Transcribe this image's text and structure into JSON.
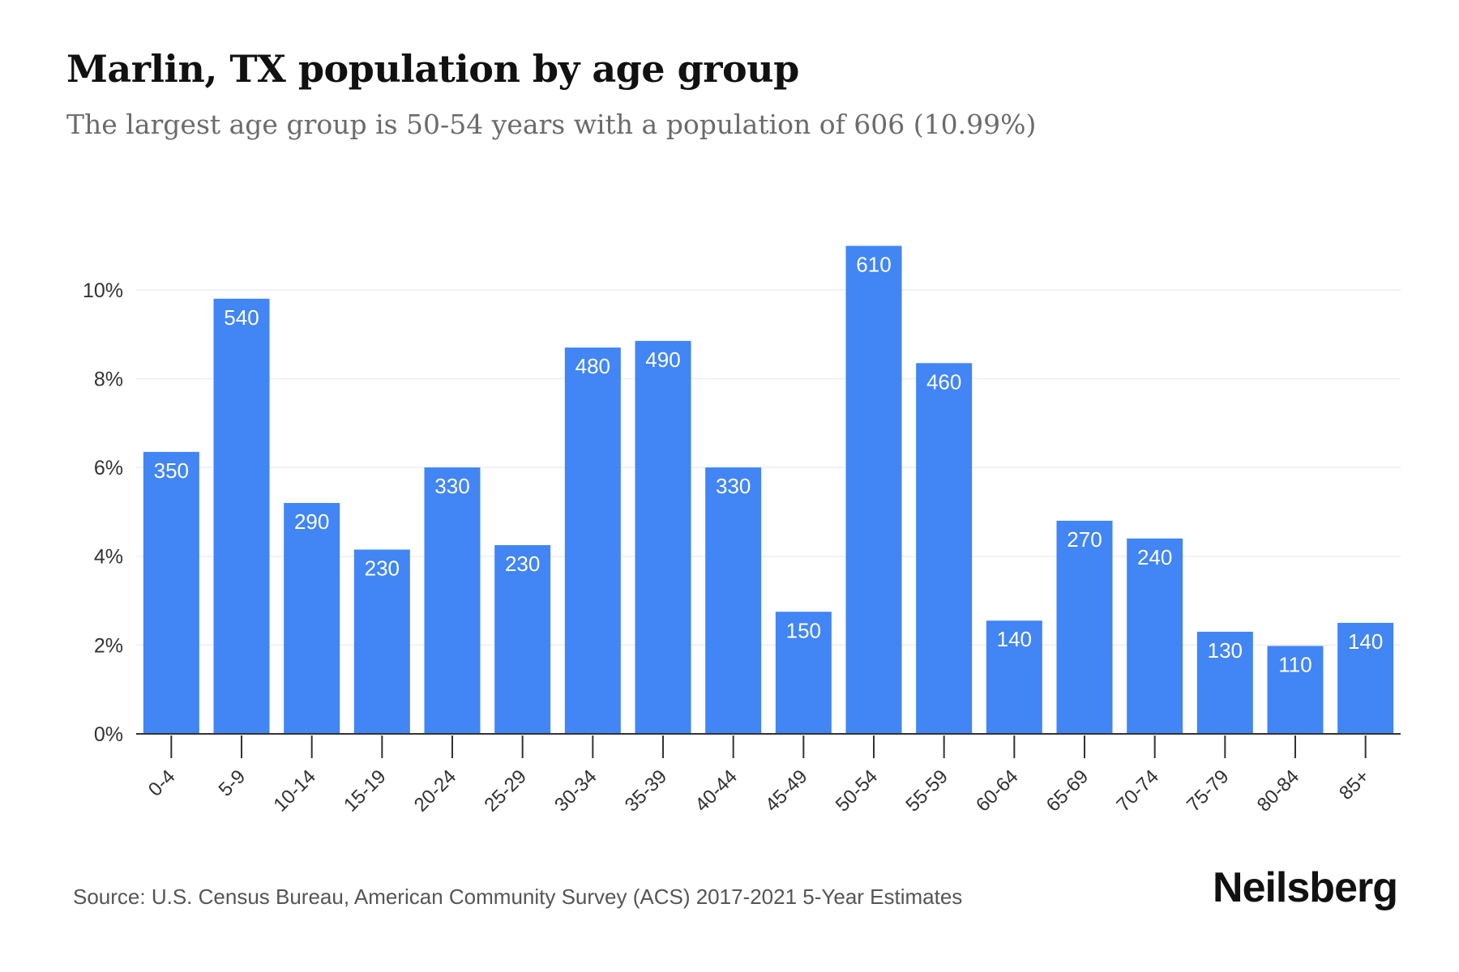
{
  "header": {
    "title": "Marlin, TX population by age group",
    "subtitle": "The largest age group is 50-54 years with a population of 606 (10.99%)"
  },
  "footer": {
    "source": "Source: U.S. Census Bureau, American Community Survey (ACS) 2017-2021 5-Year Estimates",
    "brand": "Neilsberg"
  },
  "colors": {
    "bar": "#4285f4",
    "bar_label": "#ffffff",
    "grid": "#eeeeee",
    "axis": "#333333",
    "tick_text": "#333333"
  },
  "chart_data": {
    "type": "bar",
    "title": "Marlin, TX population by age group",
    "subtitle": "The largest age group is 50-54 years with a population of 606 (10.99%)",
    "xlabel": "",
    "ylabel": "",
    "categories": [
      "0-4",
      "5-9",
      "10-14",
      "15-19",
      "20-24",
      "25-29",
      "30-34",
      "35-39",
      "40-44",
      "45-49",
      "50-54",
      "55-59",
      "60-64",
      "65-69",
      "70-74",
      "75-79",
      "80-84",
      "85+"
    ],
    "values_percent": [
      6.35,
      9.8,
      5.2,
      4.15,
      6.0,
      4.25,
      8.7,
      8.85,
      6.0,
      2.75,
      10.99,
      8.35,
      2.55,
      4.8,
      4.4,
      2.3,
      1.98,
      2.5
    ],
    "data_labels": [
      "350",
      "540",
      "290",
      "230",
      "330",
      "230",
      "480",
      "490",
      "330",
      "150",
      "610",
      "460",
      "140",
      "270",
      "240",
      "130",
      "110",
      "140"
    ],
    "ylim": [
      0,
      11
    ],
    "yticks": [
      0,
      2,
      4,
      6,
      8,
      10
    ],
    "ytick_labels": [
      "0%",
      "2%",
      "4%",
      "6%",
      "8%",
      "10%"
    ],
    "grid": true,
    "legend": "none"
  }
}
